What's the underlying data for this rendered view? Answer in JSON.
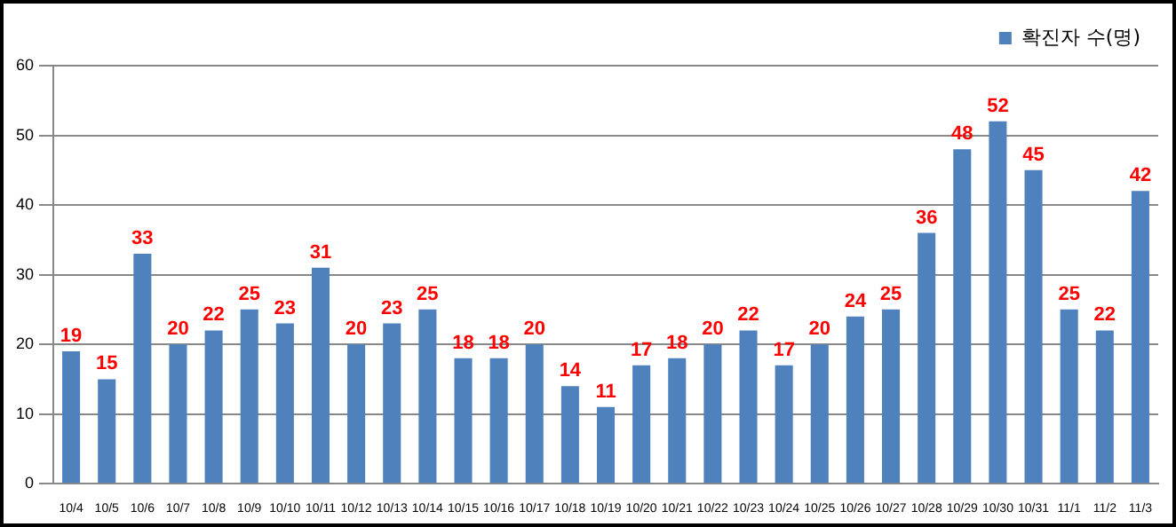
{
  "chart_data": {
    "type": "bar",
    "categories": [
      "10/4",
      "10/5",
      "10/6",
      "10/7",
      "10/8",
      "10/9",
      "10/10",
      "10/11",
      "10/12",
      "10/13",
      "10/14",
      "10/15",
      "10/16",
      "10/17",
      "10/18",
      "10/19",
      "10/20",
      "10/21",
      "10/22",
      "10/23",
      "10/24",
      "10/25",
      "10/26",
      "10/27",
      "10/28",
      "10/29",
      "10/30",
      "10/31",
      "11/1",
      "11/2",
      "11/3"
    ],
    "series": [
      {
        "name": "확진자 수(명)",
        "color": "#4f81bd",
        "values": [
          19,
          15,
          33,
          20,
          22,
          25,
          23,
          31,
          20,
          23,
          25,
          18,
          18,
          20,
          14,
          11,
          17,
          18,
          20,
          22,
          17,
          20,
          24,
          25,
          36,
          48,
          52,
          45,
          25,
          22,
          42
        ]
      }
    ],
    "ylim": [
      0,
      60
    ],
    "yticks": [
      0,
      10,
      20,
      30,
      40,
      50,
      60
    ],
    "grid": "y",
    "legend": "top right",
    "data_labels": true
  }
}
